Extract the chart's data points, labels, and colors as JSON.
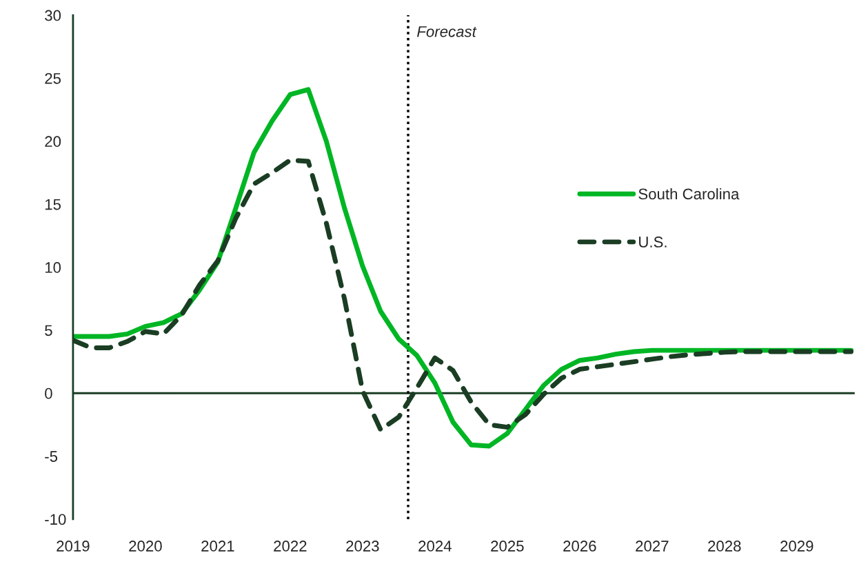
{
  "chart_data": {
    "type": "line",
    "x": [
      2019,
      2019.25,
      2019.5,
      2019.75,
      2020,
      2020.25,
      2020.5,
      2020.75,
      2021,
      2021.25,
      2021.5,
      2021.75,
      2022,
      2022.25,
      2022.5,
      2022.75,
      2023,
      2023.25,
      2023.5,
      2023.75,
      2024,
      2024.25,
      2024.5,
      2024.75,
      2025,
      2025.25,
      2025.5,
      2025.75,
      2026,
      2026.25,
      2026.5,
      2026.75,
      2027,
      2027.25,
      2027.5,
      2027.75,
      2028,
      2028.25,
      2028.5,
      2028.75,
      2029,
      2029.25,
      2029.5,
      2029.75
    ],
    "series": [
      {
        "name": "South Carolina",
        "color": "#00b624",
        "line_style": "solid",
        "values": [
          4.5,
          4.5,
          4.5,
          4.7,
          5.3,
          5.6,
          6.3,
          8.2,
          10.4,
          14.7,
          19.1,
          21.6,
          23.7,
          24.1,
          20.0,
          14.7,
          10.1,
          6.5,
          4.3,
          3.0,
          0.8,
          -2.3,
          -4.1,
          -4.2,
          -3.2,
          -1.3,
          0.6,
          1.9,
          2.6,
          2.8,
          3.1,
          3.3,
          3.4,
          3.4,
          3.4,
          3.4,
          3.4,
          3.4,
          3.4,
          3.4,
          3.4,
          3.4,
          3.4,
          3.4
        ]
      },
      {
        "name": "U.S.",
        "color": "#1a3d23",
        "line_style": "dashed",
        "values": [
          4.2,
          3.6,
          3.6,
          4.1,
          4.9,
          4.7,
          6.2,
          8.6,
          10.5,
          13.9,
          16.6,
          17.5,
          18.5,
          18.4,
          13.5,
          7.5,
          0.2,
          -2.9,
          -1.9,
          0.4,
          2.8,
          1.8,
          -0.7,
          -2.5,
          -2.7,
          -1.7,
          -0.1,
          1.2,
          1.9,
          2.1,
          2.3,
          2.5,
          2.7,
          2.9,
          3.05,
          3.15,
          3.25,
          3.3,
          3.3,
          3.3,
          3.3,
          3.3,
          3.3,
          3.3
        ]
      }
    ],
    "xlim": [
      2019,
      2029.8
    ],
    "xticks": [
      2019,
      2020,
      2021,
      2022,
      2023,
      2024,
      2025,
      2026,
      2027,
      2028,
      2029
    ],
    "ylim": [
      -10,
      30
    ],
    "yticks": [
      -10,
      -5,
      0,
      5,
      10,
      15,
      20,
      25,
      30
    ],
    "ref_lines": [
      {
        "axis": "y",
        "value": 0,
        "color": "#1a3d23",
        "line_style": "solid"
      },
      {
        "axis": "x",
        "value": 2023.63,
        "label": "Forecast",
        "color": "#000000",
        "line_style": "dotted"
      }
    ],
    "grid": false,
    "legend": "right",
    "marker": "none"
  }
}
